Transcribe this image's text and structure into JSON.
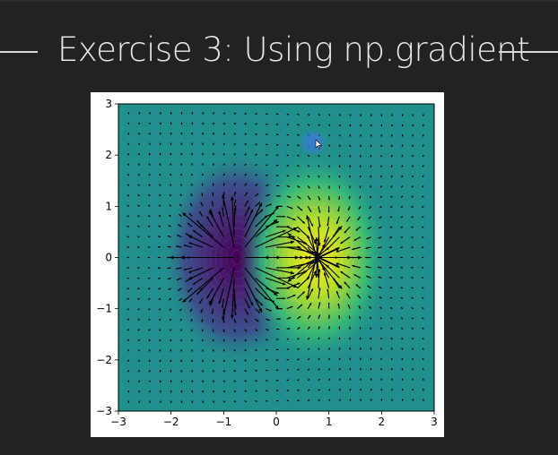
{
  "slide": {
    "title": "Exercise 3: Using np.gradient"
  },
  "colors": {
    "background": "#222223",
    "title_text": "#e8e8e8",
    "rule": "#d9d9d9",
    "figure_bg": "#ffffff",
    "field_mid": "#21908c",
    "field_low": "#440154",
    "field_high": "#fde725",
    "cursor_halo": "#3a7bd5"
  },
  "chart_data": {
    "type": "heatmap",
    "description": "contour of a dipole potential with quiver plot of its gradient",
    "title": "",
    "xlabel": "",
    "ylabel": "",
    "xlim": [
      -3,
      3
    ],
    "ylim": [
      -3,
      3
    ],
    "x_ticks": [
      "−3",
      "−2",
      "−1",
      "0",
      "1",
      "2",
      "3"
    ],
    "y_ticks": [
      "3",
      "2",
      "1",
      "0",
      "−1",
      "−2",
      "−3"
    ],
    "sources": [
      {
        "name": "minimum",
        "x": -0.75,
        "y": 0,
        "color": "#440154"
      },
      {
        "name": "maximum",
        "x": 0.75,
        "y": 0,
        "color": "#fde725"
      }
    ],
    "grid": false,
    "legend": "none",
    "colormap": "viridis"
  },
  "cursor": {
    "icon": "mouse-pointer-icon",
    "x": 0.75,
    "y": 2.3
  }
}
